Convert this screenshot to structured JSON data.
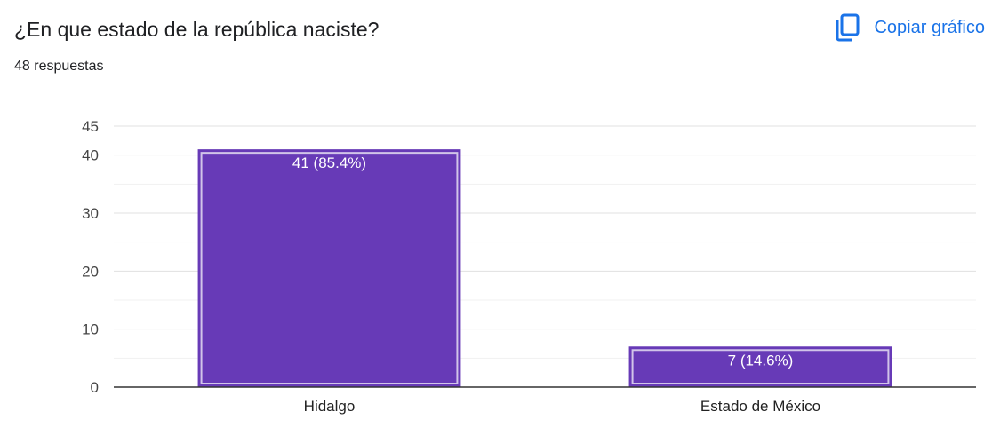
{
  "header": {
    "question_title": "¿En que estado de la república naciste?",
    "response_count": "48 respuestas",
    "copy_label": "Copiar gráfico",
    "copy_icon": "copy-icon"
  },
  "colors": {
    "bar": "#673ab7",
    "bar_outline_selected": "#d1c4e9",
    "accent": "#1a73e8",
    "gridline": "#e0e0e0",
    "axis": "#333333",
    "text": "#202124"
  },
  "chart_data": {
    "type": "bar",
    "categories": [
      "Hidalgo",
      "Estado de México"
    ],
    "values": [
      41,
      7
    ],
    "data_labels": [
      "41 (85.4%)",
      "7 (14.6%)"
    ],
    "percentages": [
      85.4,
      14.6
    ],
    "title": "",
    "xlabel": "",
    "ylabel": "",
    "ylim": [
      0,
      45
    ],
    "y_ticks": [
      0,
      10,
      20,
      30,
      40,
      45
    ],
    "grid": true,
    "legend": "none"
  }
}
